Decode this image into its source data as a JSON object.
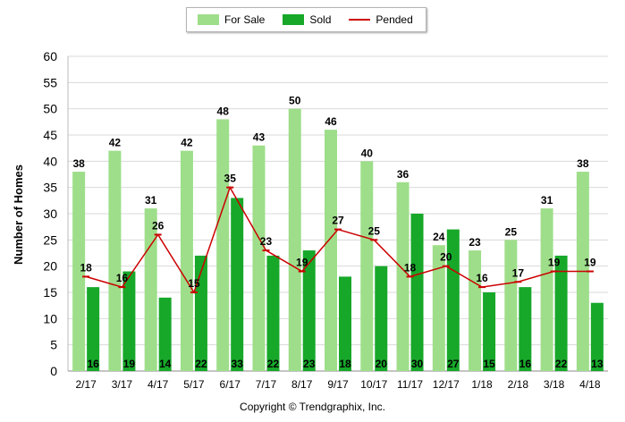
{
  "chart_data": {
    "type": "bar",
    "categories": [
      "2/17",
      "3/17",
      "4/17",
      "5/17",
      "6/17",
      "7/17",
      "8/17",
      "9/17",
      "10/17",
      "11/17",
      "12/17",
      "1/18",
      "2/18",
      "3/18",
      "4/18"
    ],
    "series": [
      {
        "name": "For Sale",
        "type": "bar",
        "color": "#9ede8a",
        "values": [
          38,
          42,
          31,
          42,
          48,
          43,
          50,
          46,
          40,
          36,
          24,
          23,
          25,
          31,
          38
        ]
      },
      {
        "name": "Sold",
        "type": "bar",
        "color": "#17a82a",
        "values": [
          16,
          19,
          14,
          22,
          33,
          22,
          23,
          18,
          20,
          30,
          27,
          15,
          16,
          22,
          13
        ]
      },
      {
        "name": "Pended",
        "type": "line",
        "color": "#cc0000",
        "values": [
          18,
          16,
          26,
          15,
          35,
          23,
          19,
          27,
          25,
          18,
          20,
          16,
          17,
          19,
          19
        ]
      }
    ],
    "ylabel": "Number of Homes",
    "xlabel": "",
    "ylim": [
      0,
      60
    ],
    "yticks": [
      0,
      5,
      10,
      15,
      20,
      25,
      30,
      35,
      40,
      45,
      50,
      55,
      60
    ],
    "grid": true,
    "legend_position": "top-center"
  },
  "copyright": "Copyright © Trendgraphix, Inc."
}
